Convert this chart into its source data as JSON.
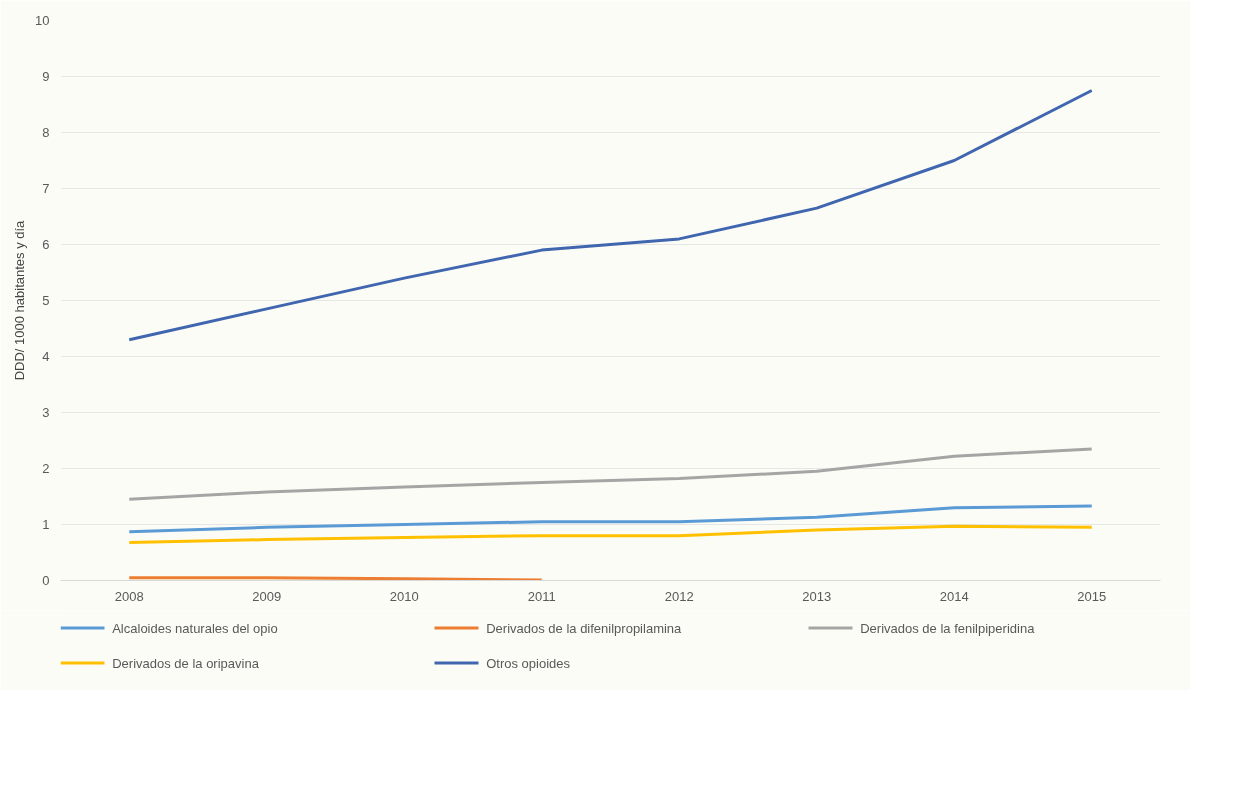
{
  "chart_data": {
    "type": "line",
    "ylabel": "DDD/ 1000 habitantes y día",
    "categories": [
      "2008",
      "2009",
      "2010",
      "2011",
      "2012",
      "2013",
      "2014",
      "2015"
    ],
    "series": [
      {
        "name": "Alcaloides naturales del opio",
        "color": "#5b9bd5",
        "values": [
          0.87,
          0.95,
          1.0,
          1.05,
          1.05,
          1.13,
          1.3,
          1.33
        ]
      },
      {
        "name": "Derivados de la difenilpropilamina",
        "color": "#ed7d31",
        "values": [
          0.05,
          0.05,
          0.03,
          0.01,
          null,
          null,
          null,
          null
        ]
      },
      {
        "name": "Derivados de la fenilpiperidina",
        "color": "#a5a5a5",
        "values": [
          1.45,
          1.58,
          1.67,
          1.75,
          1.82,
          1.95,
          2.22,
          2.35
        ]
      },
      {
        "name": "Derivados de la oripavina",
        "color": "#ffc000",
        "values": [
          0.68,
          0.73,
          0.77,
          0.8,
          0.8,
          0.9,
          0.97,
          0.95
        ]
      },
      {
        "name": "Otros opioides",
        "color": "#4066b0",
        "values": [
          4.3,
          4.85,
          5.4,
          5.9,
          6.1,
          6.65,
          7.5,
          8.75
        ]
      }
    ],
    "ylim": [
      0,
      10
    ],
    "yticks": [
      0,
      1,
      2,
      3,
      4,
      5,
      6,
      7,
      8,
      9,
      10
    ],
    "grid": "y",
    "legend": "bottom",
    "marker": "none",
    "line_style": "solid"
  }
}
